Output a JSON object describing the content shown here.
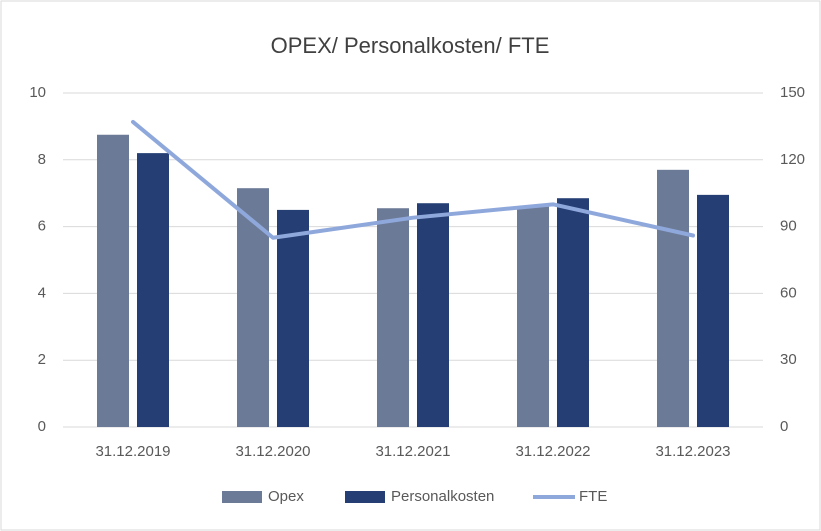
{
  "chart_data": {
    "type": "bar_line",
    "title": "OPEX/ Personalkosten/ FTE",
    "categories": [
      "31.12.2019",
      "31.12.2020",
      "31.12.2021",
      "31.12.2022",
      "31.12.2023"
    ],
    "series": [
      {
        "name": "Opex",
        "type": "bar",
        "color": "#6b7a96",
        "values": [
          8.75,
          7.15,
          6.55,
          6.6,
          7.7
        ]
      },
      {
        "name": "Personalkosten",
        "type": "bar",
        "color": "#253f74",
        "values": [
          8.2,
          6.5,
          6.7,
          6.85,
          6.95
        ]
      },
      {
        "name": "FTE",
        "type": "line",
        "axis": "y2",
        "color": "#8fa8dc",
        "values": [
          137,
          85,
          94,
          100,
          86
        ]
      }
    ],
    "ylim": [
      0,
      10
    ],
    "yticks": [
      0,
      2,
      4,
      6,
      8,
      10
    ],
    "y2lim": [
      0,
      150
    ],
    "y2ticks": [
      0,
      30,
      60,
      90,
      120,
      150
    ],
    "grid": true,
    "legend": "bottom"
  }
}
